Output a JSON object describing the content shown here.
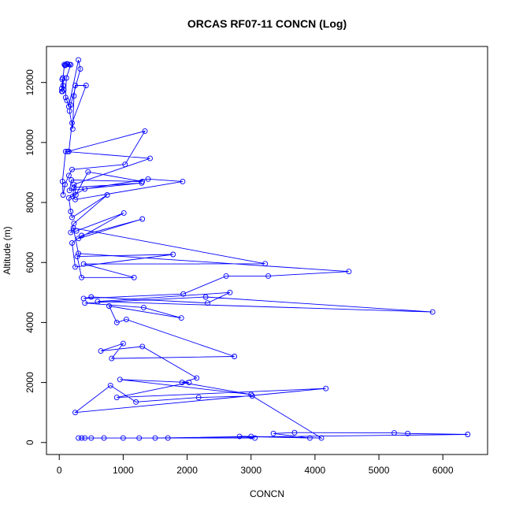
{
  "chart_data": {
    "type": "line",
    "title": "ORCAS RF07-11 CONCN (Log)",
    "xlabel": "CONCN",
    "ylabel": "Altitude (m)",
    "xlim": [
      -200,
      6700
    ],
    "ylim": [
      -400,
      13200
    ],
    "xticks": [
      0,
      1000,
      2000,
      3000,
      4000,
      5000,
      6000
    ],
    "yticks": [
      0,
      2000,
      4000,
      6000,
      8000,
      10000,
      12000
    ],
    "marker": "open-circle",
    "grid": false,
    "color": "#0000ff",
    "series": [
      {
        "x": [
          50,
          40,
          60,
          45,
          70,
          55,
          40,
          80,
          100,
          120,
          90,
          130,
          160,
          180,
          110,
          100,
          120,
          150,
          300,
          330,
          180,
          160,
          210,
          230,
          250,
          420,
          200,
          150,
          130,
          1340,
          1030,
          200,
          150,
          90,
          60,
          50,
          100,
          1420,
          230,
          260,
          450,
          1300,
          190,
          160,
          1290,
          230,
          210,
          250,
          1930,
          1390,
          400,
          150,
          180,
          200,
          750,
          230,
          180,
          270,
          1010,
          300,
          1300,
          350,
          200,
          250,
          1780,
          280,
          350,
          1170,
          380,
          3220,
          220,
          300,
          4530,
          3270,
          2610,
          1940,
          380,
          500,
          2320,
          2670,
          600,
          5840,
          2290,
          400,
          1320,
          1910,
          780,
          900,
          1050,
          2740,
          820,
          1000,
          650,
          1300,
          2150,
          1920,
          3000,
          950,
          2030,
          900,
          4170,
          250,
          800,
          1200,
          2180,
          3020,
          4100,
          3000,
          1500,
          6390,
          5450,
          5240,
          3680,
          3350,
          3920,
          2820,
          3060,
          1700,
          1250,
          1000,
          700,
          500,
          400,
          300,
          350
        ],
        "y": [
          11700,
          11800,
          11900,
          12100,
          11750,
          12150,
          11700,
          12600,
          12580,
          12620,
          12570,
          12610,
          12600,
          12590,
          12150,
          11500,
          11400,
          11200,
          12750,
          12450,
          11250,
          11050,
          10450,
          11550,
          11900,
          11900,
          10650,
          9700,
          9700,
          10380,
          9270,
          9100,
          8900,
          8600,
          8250,
          8700,
          9700,
          9470,
          8600,
          8250,
          9020,
          8700,
          8750,
          8400,
          8650,
          8500,
          8200,
          8100,
          8700,
          8780,
          8450,
          8150,
          7700,
          7500,
          8250,
          7300,
          7000,
          7050,
          7650,
          6800,
          7450,
          6900,
          6650,
          5850,
          6270,
          6200,
          5500,
          5500,
          5950,
          5960,
          7150,
          6300,
          5700,
          5550,
          5550,
          4950,
          4800,
          4850,
          4650,
          5000,
          4700,
          4350,
          4850,
          4650,
          4500,
          4150,
          4550,
          4000,
          4100,
          2870,
          2800,
          3300,
          3050,
          3200,
          2150,
          2000,
          1600,
          2100,
          2000,
          1500,
          1800,
          1000,
          1900,
          1350,
          1500,
          1550,
          150,
          200,
          150,
          270,
          300,
          320,
          330,
          300,
          150,
          200,
          150,
          150,
          150,
          150,
          150,
          150,
          150,
          150,
          150
        ]
      }
    ]
  }
}
